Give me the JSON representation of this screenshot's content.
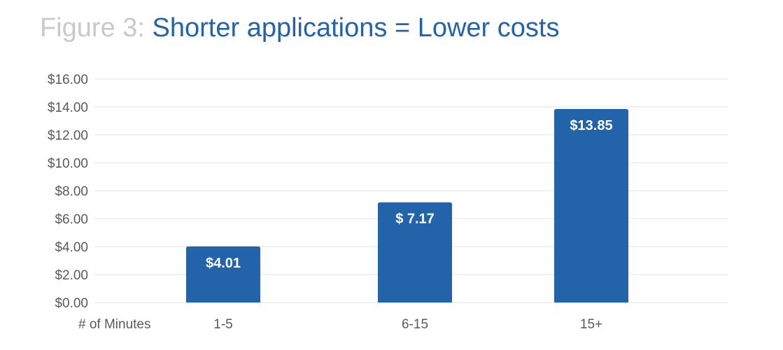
{
  "title": {
    "prefix": "Figure 3:",
    "main": "Shorter applications = Lower costs"
  },
  "colors": {
    "bar": "#2363a9",
    "title_main": "#2563a8",
    "title_prefix": "#c9c9c9",
    "grid": "#e3e3e3"
  },
  "chart_data": {
    "type": "bar",
    "title": "Shorter applications = Lower costs",
    "xlabel": "# of Minutes",
    "ylabel": "",
    "categories": [
      "1-5",
      "6-15",
      "15+"
    ],
    "values": [
      4.01,
      7.17,
      13.85
    ],
    "data_labels": [
      "$4.01",
      "$ 7.17",
      "$13.85"
    ],
    "ylim": [
      0,
      16
    ],
    "yticks": [
      0,
      2,
      4,
      6,
      8,
      10,
      12,
      14,
      16
    ],
    "ytick_labels": [
      "$0.00",
      "$2.00",
      "$4.00",
      "$6.00",
      "$8.00",
      "$10.00",
      "$12.00",
      "$14.00",
      "$16.00"
    ],
    "grid": true,
    "legend": "none"
  }
}
